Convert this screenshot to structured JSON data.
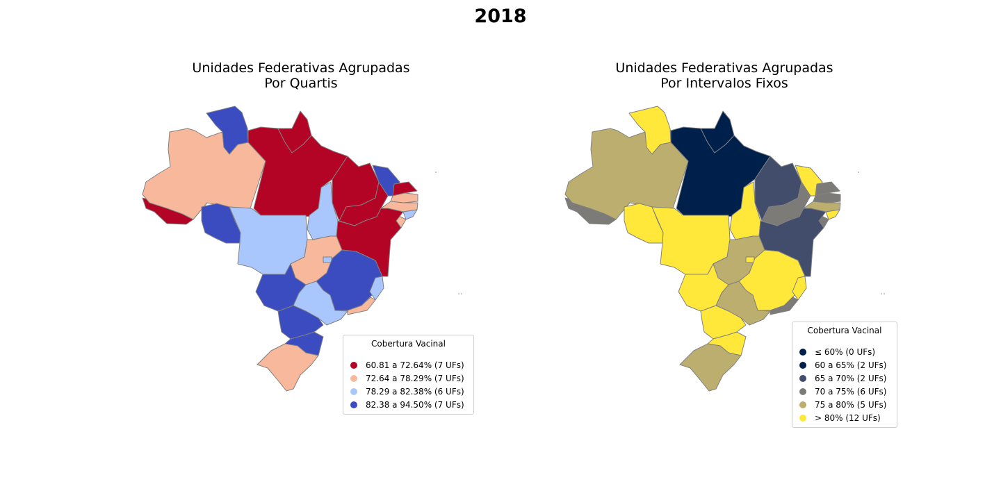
{
  "figure": {
    "suptitle": "2018"
  },
  "panels": [
    {
      "title_line1": "Unidades Federativas Agrupadas",
      "title_line2": "Por Quartis",
      "legend": {
        "title": "Cobertura Vacinal",
        "entries": [
          {
            "label": "60.81 a 72.64%  (7 UFs)",
            "color": "#b40426"
          },
          {
            "label": "72.64 a 78.29%  (7 UFs)",
            "color": "#f7b89c"
          },
          {
            "label": "78.29 a 82.38%  (6 UFs)",
            "color": "#aac7fd"
          },
          {
            "label": "82.38 a 94.50%  (7 UFs)",
            "color": "#3b4cc0"
          }
        ]
      }
    },
    {
      "title_line1": "Unidades Federativas Agrupadas",
      "title_line2": "Por Intervalos Fixos",
      "legend": {
        "title": "Cobertura Vacinal",
        "entries": [
          {
            "label": "≤ 60%  (0 UFs)",
            "color": "#00204c"
          },
          {
            "label": "60 a 65%  (2 UFs)",
            "color": "#00204c"
          },
          {
            "label": "65 a 70%  (2 UFs)",
            "color": "#414d6b"
          },
          {
            "label": "70 a 75%  (6 UFs)",
            "color": "#7c7b78"
          },
          {
            "label": "75 a 80%  (5 UFs)",
            "color": "#bcae6e"
          },
          {
            "label": "> 80%  (12 UFs)",
            "color": "#ffe83a"
          }
        ]
      }
    }
  ],
  "states": [
    {
      "uf": "AC",
      "quartile_color": "#b40426",
      "fixed_color": "#7c7b78"
    },
    {
      "uf": "AM",
      "quartile_color": "#f7b89c",
      "fixed_color": "#bcae6e"
    },
    {
      "uf": "RR",
      "quartile_color": "#3b4cc0",
      "fixed_color": "#ffe83a"
    },
    {
      "uf": "PA",
      "quartile_color": "#b40426",
      "fixed_color": "#00204c"
    },
    {
      "uf": "AP",
      "quartile_color": "#b40426",
      "fixed_color": "#00204c"
    },
    {
      "uf": "RO",
      "quartile_color": "#3b4cc0",
      "fixed_color": "#ffe83a"
    },
    {
      "uf": "MT",
      "quartile_color": "#aac7fd",
      "fixed_color": "#ffe83a"
    },
    {
      "uf": "TO",
      "quartile_color": "#aac7fd",
      "fixed_color": "#ffe83a"
    },
    {
      "uf": "MA",
      "quartile_color": "#b40426",
      "fixed_color": "#414d6b"
    },
    {
      "uf": "PI",
      "quartile_color": "#b40426",
      "fixed_color": "#7c7b78"
    },
    {
      "uf": "CE",
      "quartile_color": "#3b4cc0",
      "fixed_color": "#ffe83a"
    },
    {
      "uf": "RN",
      "quartile_color": "#b40426",
      "fixed_color": "#7c7b78"
    },
    {
      "uf": "PB",
      "quartile_color": "#f7b89c",
      "fixed_color": "#7c7b78"
    },
    {
      "uf": "PE",
      "quartile_color": "#f7b89c",
      "fixed_color": "#bcae6e"
    },
    {
      "uf": "AL",
      "quartile_color": "#aac7fd",
      "fixed_color": "#ffe83a"
    },
    {
      "uf": "SE",
      "quartile_color": "#f7b89c",
      "fixed_color": "#7c7b78"
    },
    {
      "uf": "BA",
      "quartile_color": "#b40426",
      "fixed_color": "#414d6b"
    },
    {
      "uf": "GO",
      "quartile_color": "#f7b89c",
      "fixed_color": "#bcae6e"
    },
    {
      "uf": "DF",
      "quartile_color": "#aac7fd",
      "fixed_color": "#ffe83a"
    },
    {
      "uf": "MG",
      "quartile_color": "#3b4cc0",
      "fixed_color": "#ffe83a"
    },
    {
      "uf": "ES",
      "quartile_color": "#aac7fd",
      "fixed_color": "#ffe83a"
    },
    {
      "uf": "RJ",
      "quartile_color": "#f7b89c",
      "fixed_color": "#7c7b78"
    },
    {
      "uf": "SP",
      "quartile_color": "#aac7fd",
      "fixed_color": "#bcae6e"
    },
    {
      "uf": "MS",
      "quartile_color": "#3b4cc0",
      "fixed_color": "#ffe83a"
    },
    {
      "uf": "PR",
      "quartile_color": "#3b4cc0",
      "fixed_color": "#ffe83a"
    },
    {
      "uf": "SC",
      "quartile_color": "#3b4cc0",
      "fixed_color": "#ffe83a"
    },
    {
      "uf": "RS",
      "quartile_color": "#f7b89c",
      "fixed_color": "#bcae6e"
    }
  ]
}
